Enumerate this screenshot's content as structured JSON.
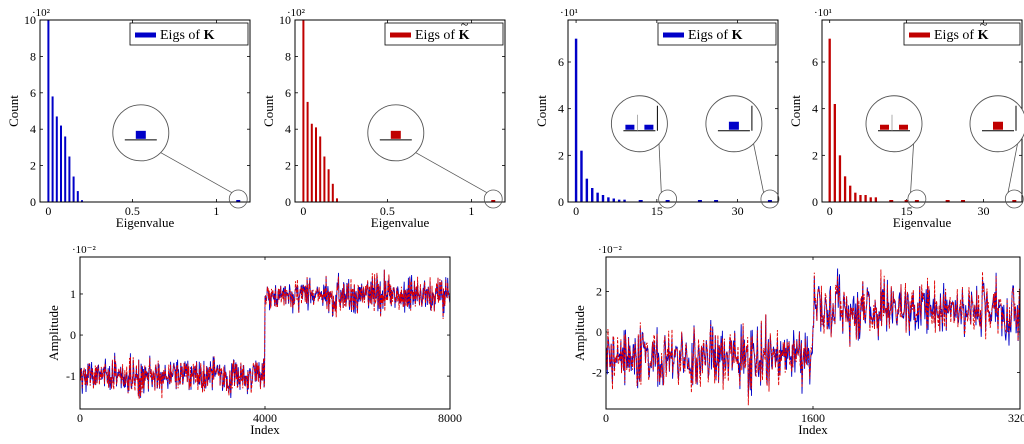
{
  "colors": {
    "blue": "#0000c8",
    "red": "#c00000",
    "redDash": "#e00000",
    "gray": "#555555"
  },
  "chart_data": [
    {
      "id": "hist1",
      "type": "bar",
      "xlabel": "Eigenvalue",
      "ylabel": "Count",
      "exponent": "·10²",
      "legend": "Eigs of K",
      "legendTilde": false,
      "color": "blue",
      "xlim": [
        -0.05,
        1.2
      ],
      "ylim": [
        0,
        10
      ],
      "xticks": [
        0,
        0.5,
        1
      ],
      "xtickLabels": [
        "0",
        "0.5",
        "1"
      ],
      "yticks": [
        0,
        2,
        4,
        6,
        8,
        10
      ],
      "ytickLabels": [
        "0",
        "2",
        "4",
        "6",
        "8",
        "10"
      ],
      "bins": [
        0,
        0.025,
        0.05,
        0.075,
        0.1,
        0.125,
        0.15,
        0.175,
        0.2
      ],
      "values": [
        10,
        5.8,
        4.7,
        4.2,
        3.6,
        2.5,
        1.4,
        0.6,
        0.1
      ],
      "outliers": [
        1.13
      ]
    },
    {
      "id": "hist2",
      "type": "bar",
      "xlabel": "Eigenvalue",
      "ylabel": "Count",
      "exponent": "·10²",
      "legend": "Eigs of K",
      "legendTilde": true,
      "color": "red",
      "xlim": [
        -0.05,
        1.2
      ],
      "ylim": [
        0,
        10
      ],
      "xticks": [
        0,
        0.5,
        1
      ],
      "xtickLabels": [
        "0",
        "0.5",
        "1"
      ],
      "yticks": [
        0,
        2,
        4,
        6,
        8,
        10
      ],
      "ytickLabels": [
        "0",
        "2",
        "4",
        "6",
        "8",
        "10"
      ],
      "bins": [
        0,
        0.025,
        0.05,
        0.075,
        0.1,
        0.125,
        0.15,
        0.175,
        0.2
      ],
      "values": [
        10,
        5.5,
        4.3,
        4.1,
        3.6,
        2.5,
        1.8,
        1.0,
        0.2
      ],
      "outliers": [
        1.13
      ]
    },
    {
      "id": "hist3",
      "type": "bar",
      "xlabel": "",
      "ylabel": "Count",
      "exponent": "·10¹",
      "legend": "Eigs of K",
      "legendTilde": false,
      "color": "blue",
      "xlim": [
        -1.5,
        37.5
      ],
      "ylim": [
        0,
        7.8
      ],
      "xticks": [
        0,
        15,
        30
      ],
      "xtickLabels": [
        "0",
        "15",
        "30"
      ],
      "yticks": [
        0,
        2,
        4,
        6
      ],
      "ytickLabels": [
        "0",
        "2",
        "4",
        "6"
      ],
      "bins": [
        0,
        1,
        2,
        3,
        4,
        5,
        6,
        7,
        8,
        9
      ],
      "values": [
        7.0,
        2.2,
        1.0,
        0.6,
        0.4,
        0.3,
        0.2,
        0.15,
        0.1,
        0.1
      ],
      "outliers": [
        12,
        17,
        23,
        26,
        36
      ]
    },
    {
      "id": "hist4",
      "type": "bar",
      "xlabel": "Eigenvalue",
      "ylabel": "Count",
      "exponent": "·10¹",
      "legend": "Eigs of K",
      "legendTilde": true,
      "color": "red",
      "xlim": [
        -1.5,
        37.5
      ],
      "ylim": [
        0,
        7.8
      ],
      "xticks": [
        0,
        15,
        30
      ],
      "xtickLabels": [
        "0",
        "15",
        "30"
      ],
      "yticks": [
        0,
        2,
        4,
        6
      ],
      "ytickLabels": [
        "0",
        "2",
        "4",
        "6"
      ],
      "bins": [
        0,
        1,
        2,
        3,
        4,
        5,
        6,
        7,
        8,
        9
      ],
      "values": [
        7.0,
        4.2,
        2.0,
        1.1,
        0.7,
        0.4,
        0.3,
        0.3,
        0.2,
        0.2
      ],
      "outliers": [
        12,
        15,
        17,
        23,
        26,
        36
      ]
    },
    {
      "id": "sig1",
      "type": "line",
      "xlabel": "Index",
      "ylabel": "Amplitude",
      "exponent": "·10⁻²",
      "xlim": [
        0,
        8000
      ],
      "ylim": [
        -1.8,
        1.9
      ],
      "xticks": [
        0,
        4000,
        8000
      ],
      "xtickLabels": [
        "0",
        "4000",
        "8000"
      ],
      "yticks": [
        -1,
        0,
        1
      ],
      "ytickLabels": [
        "-1",
        "0",
        "1"
      ],
      "stepAt": 4000,
      "levelLow": -1.0,
      "levelHigh": 1.0,
      "noise": 0.22,
      "samples": 800,
      "series": [
        {
          "color": "blue",
          "style": "solid"
        },
        {
          "color": "redDash",
          "style": "dashed"
        }
      ]
    },
    {
      "id": "sig2",
      "type": "line",
      "xlabel": "Index",
      "ylabel": "Amplitude",
      "exponent": "·10⁻²",
      "xlim": [
        0,
        3200
      ],
      "ylim": [
        -3.8,
        3.7
      ],
      "xticks": [
        0,
        1600,
        3200
      ],
      "xtickLabels": [
        "0",
        "1600",
        "3200"
      ],
      "yticks": [
        -2,
        0,
        2
      ],
      "ytickLabels": [
        "-2",
        "0",
        "2"
      ],
      "stepAt": 1600,
      "levelLow": -1.2,
      "levelHigh": 1.2,
      "noise": 0.75,
      "samples": 640,
      "series": [
        {
          "color": "blue",
          "style": "solid"
        },
        {
          "color": "redDash",
          "style": "dashed"
        }
      ]
    }
  ]
}
